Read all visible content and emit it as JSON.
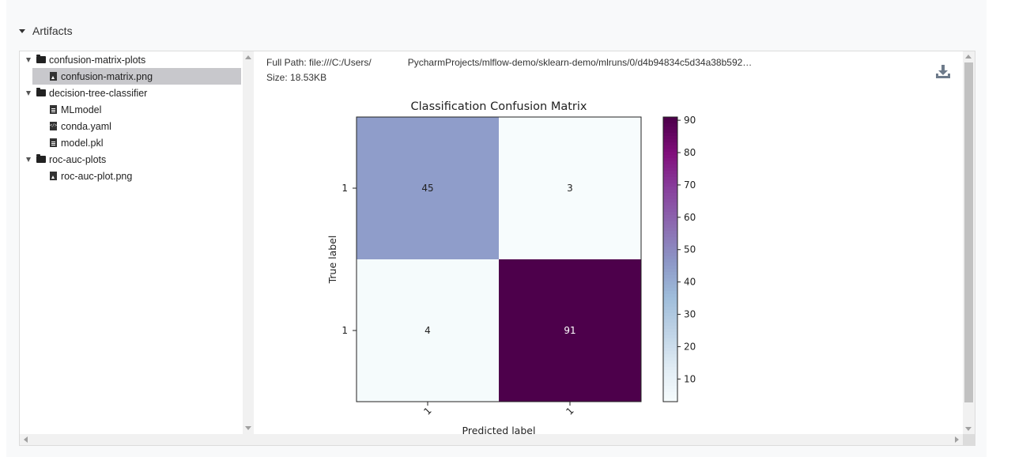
{
  "section": {
    "title": "Artifacts"
  },
  "tree": {
    "items": [
      {
        "label": "confusion-matrix-plots",
        "type": "folder",
        "icon": "folder-icon",
        "expanded": true
      },
      {
        "label": "confusion-matrix.png",
        "type": "file",
        "icon": "image-file-icon",
        "selected": true
      },
      {
        "label": "decision-tree-classifier",
        "type": "folder",
        "icon": "folder-icon",
        "expanded": true
      },
      {
        "label": "MLmodel",
        "type": "file",
        "icon": "document-file-icon"
      },
      {
        "label": "conda.yaml",
        "type": "file",
        "icon": "code-file-icon"
      },
      {
        "label": "model.pkl",
        "type": "file",
        "icon": "document-file-icon"
      },
      {
        "label": "roc-auc-plots",
        "type": "folder",
        "icon": "folder-icon",
        "expanded": true
      },
      {
        "label": "roc-auc-plot.png",
        "type": "file",
        "icon": "image-file-icon"
      }
    ]
  },
  "preview": {
    "full_path_label": "Full Path:",
    "full_path_prefix": "file:///C:/Users/",
    "full_path_suffix": "PycharmProjects/mlflow-demo/sklearn-demo/mlruns/0/d4b94834c5d34a38b592…",
    "size_label": "Size:",
    "size_value": "18.53KB",
    "download_icon": "download-icon"
  },
  "colors": {
    "cell_high": "#4d004b",
    "cell_mid": "#8f9dcb",
    "cell_low": "#f7fcfd",
    "selected_row": "#c8c8cc"
  },
  "chart_data": {
    "type": "heatmap",
    "title": "Classification Confusion Matrix",
    "xlabel": "Predicted label",
    "ylabel": "True label",
    "x_ticks": [
      "1",
      "1"
    ],
    "y_ticks": [
      "1",
      "1"
    ],
    "values": [
      [
        45,
        3
      ],
      [
        4,
        91
      ]
    ],
    "colorbar": {
      "ticks": [
        10,
        20,
        30,
        40,
        50,
        60,
        70,
        80,
        90
      ],
      "range": [
        3,
        91
      ],
      "colormap": "BuPu"
    }
  }
}
